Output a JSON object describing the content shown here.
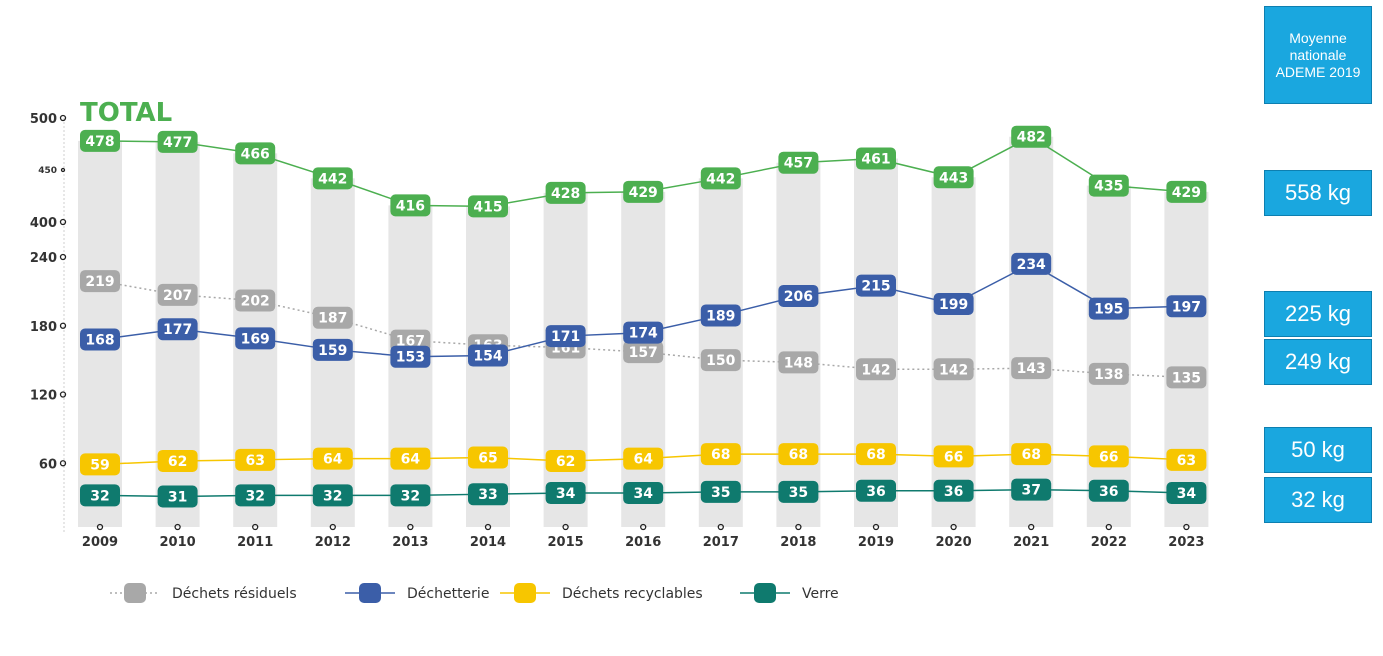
{
  "chart_data": {
    "type": "line",
    "title": "TOTAL",
    "categories": [
      "2009",
      "2010",
      "2011",
      "2012",
      "2013",
      "2014",
      "2015",
      "2016",
      "2017",
      "2018",
      "2019",
      "2020",
      "2021",
      "2022",
      "2023"
    ],
    "y_ticks_upper": [
      "500",
      "450",
      "400"
    ],
    "y_ticks_lower": [
      "240",
      "180",
      "120",
      "60"
    ],
    "ylim_upper": [
      400,
      500
    ],
    "ylim_lower": [
      0,
      240
    ],
    "series": [
      {
        "name": "TOTAL",
        "color": "#4caf50",
        "style": "solid",
        "axis": "upper",
        "values": [
          478,
          477,
          466,
          442,
          416,
          415,
          428,
          429,
          442,
          457,
          461,
          443,
          482,
          435,
          429
        ]
      },
      {
        "name": "Déchets résiduels",
        "color": "#a8a8a8",
        "style": "dotted",
        "axis": "lower",
        "values": [
          219,
          207,
          202,
          187,
          167,
          163,
          161,
          157,
          150,
          148,
          142,
          142,
          143,
          138,
          135
        ]
      },
      {
        "name": "Déchetterie",
        "color": "#3b5ea8",
        "style": "solid",
        "axis": "lower",
        "values": [
          168,
          177,
          169,
          159,
          153,
          154,
          171,
          174,
          189,
          206,
          215,
          199,
          234,
          195,
          197
        ]
      },
      {
        "name": "Déchets recyclables",
        "color": "#f7c600",
        "style": "solid",
        "axis": "lower",
        "values": [
          59,
          62,
          63,
          64,
          64,
          65,
          62,
          64,
          68,
          68,
          68,
          66,
          68,
          66,
          63
        ]
      },
      {
        "name": "Verre",
        "color": "#0f7a6e",
        "style": "solid",
        "axis": "lower",
        "values": [
          32,
          31,
          32,
          32,
          32,
          33,
          34,
          34,
          35,
          35,
          36,
          36,
          37,
          36,
          34
        ]
      }
    ],
    "legend": [
      "Déchets résiduels",
      "Déchetterie",
      "Déchets recyclables",
      "Verre"
    ],
    "legend_position": "bottom"
  },
  "sidebar": {
    "title": "Moyenne nationale ADEME 2019",
    "values": [
      "558 kg",
      "225 kg",
      "249 kg",
      "50 kg",
      "32 kg"
    ]
  }
}
